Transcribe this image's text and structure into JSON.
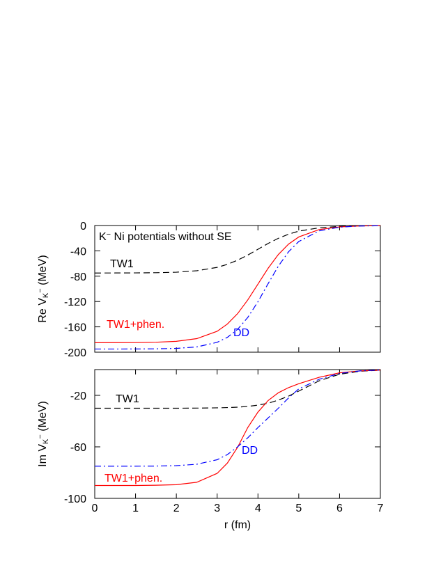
{
  "chart_data": [
    {
      "type": "line",
      "title": [
        "K",
        "−",
        " Ni potentials without SE"
      ],
      "y_label": [
        "Re V",
        "K",
        "−",
        " (MeV)"
      ],
      "x": [
        0,
        0.5,
        1,
        1.5,
        2,
        2.5,
        3,
        3.25,
        3.5,
        3.75,
        4,
        4.25,
        4.5,
        4.75,
        5,
        5.5,
        6,
        6.5,
        7
      ],
      "series": [
        {
          "name": "TW1",
          "color": "#000000",
          "style": "dashed",
          "values": [
            -75.0,
            -74.9,
            -74.8,
            -74.5,
            -73.7,
            -71.4,
            -66.1,
            -61.3,
            -54.8,
            -46.7,
            -37.5,
            -28.3,
            -20.2,
            -13.7,
            -8.9,
            -3.6,
            -1.4,
            -0.5,
            -0.2
          ]
        },
        {
          "name": "TW1+phen.",
          "color": "#ff0000",
          "style": "solid",
          "values": [
            -185.0,
            -184.9,
            -184.8,
            -184.3,
            -182.8,
            -178.6,
            -167.0,
            -155.6,
            -139.2,
            -117.5,
            -92.5,
            -67.4,
            -45.8,
            -29.4,
            -18.1,
            -6.4,
            -2.2,
            -0.7,
            -0.2
          ]
        },
        {
          "name": "DD",
          "color": "#0000ff",
          "style": "dashdot",
          "values": [
            -195.0,
            -195.0,
            -194.9,
            -194.7,
            -194.0,
            -191.7,
            -184.4,
            -176.6,
            -164.0,
            -145.2,
            -120.3,
            -91.7,
            -64.1,
            -41.5,
            -25.3,
            -8.4,
            -2.6,
            -0.8,
            -0.3
          ]
        }
      ],
      "xlim": [
        0,
        7
      ],
      "xticks": [
        0,
        1,
        2,
        3,
        4,
        5,
        6,
        7
      ],
      "ylim": [
        -200,
        0
      ],
      "yticks": [
        -200,
        -160,
        -120,
        -80,
        -40,
        0
      ]
    },
    {
      "type": "line",
      "y_label": [
        "Im V",
        "K",
        "−",
        " (MeV)"
      ],
      "x_label": "r (fm)",
      "x": [
        0,
        0.5,
        1,
        1.5,
        2,
        2.5,
        3,
        3.25,
        3.5,
        3.75,
        4,
        4.25,
        4.5,
        4.75,
        5,
        5.5,
        6,
        6.5,
        7
      ],
      "series": [
        {
          "name": "TW1",
          "color": "#000000",
          "style": "dashed",
          "values": [
            -30.0,
            -30.0,
            -30.0,
            -30.0,
            -30.0,
            -29.9,
            -29.7,
            -29.5,
            -29.2,
            -28.6,
            -27.6,
            -26.1,
            -23.7,
            -20.6,
            -16.7,
            -8.7,
            -3.6,
            -1.3,
            -0.4
          ]
        },
        {
          "name": "TW1+phen.",
          "color": "#ff0000",
          "style": "solid",
          "values": [
            -90.0,
            -90.0,
            -90.0,
            -89.8,
            -89.4,
            -87.5,
            -80.6,
            -72.6,
            -60.4,
            -45.0,
            -33.0,
            -24.0,
            -18.0,
            -14.0,
            -11.0,
            -6.0,
            -2.5,
            -1.0,
            -0.4
          ]
        },
        {
          "name": "DD",
          "color": "#0000ff",
          "style": "dashdot",
          "values": [
            -75.0,
            -75.0,
            -75.0,
            -74.9,
            -74.6,
            -73.5,
            -70.0,
            -66.0,
            -60.0,
            -53.0,
            -45.0,
            -37.5,
            -30.0,
            -22.0,
            -15.0,
            -7.5,
            -3.0,
            -1.0,
            -0.3
          ]
        }
      ],
      "xlim": [
        0,
        7
      ],
      "xticks": [
        0,
        1,
        2,
        3,
        4,
        5,
        6,
        7
      ],
      "ylim": [
        -100,
        0
      ],
      "yticks": [
        -100,
        -60,
        -20
      ]
    }
  ]
}
